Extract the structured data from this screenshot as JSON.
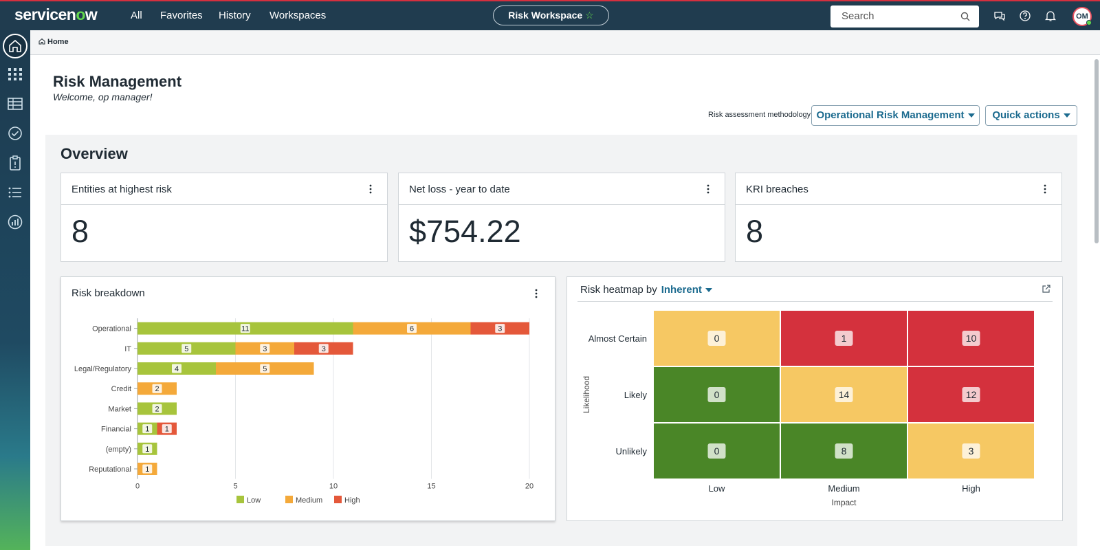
{
  "header": {
    "logo_pre": "servicen",
    "logo_o": "o",
    "logo_post": "w",
    "nav": [
      "All",
      "Favorites",
      "History",
      "Workspaces"
    ],
    "workspace": "Risk Workspace",
    "search_placeholder": "Search",
    "avatar_initials": "OM"
  },
  "breadcrumb": {
    "home": "Home"
  },
  "page": {
    "title": "Risk Management",
    "welcome": "Welcome, op manager!",
    "methodology_label": "Risk assessment methodology",
    "methodology_value": "Operational Risk Management",
    "quick_actions": "Quick actions"
  },
  "overview": {
    "title": "Overview",
    "kpis": [
      {
        "title": "Entities at highest risk",
        "value": "8"
      },
      {
        "title": "Net loss - year to date",
        "value": "$754.22"
      },
      {
        "title": "KRI breaches",
        "value": "8"
      }
    ]
  },
  "breakdown": {
    "title": "Risk breakdown"
  },
  "heatmap": {
    "title": "Risk heatmap by",
    "mode": "Inherent",
    "xlabel": "Impact",
    "ylabel": "Likelihood",
    "cols": [
      "Low",
      "Medium",
      "High"
    ],
    "rows": [
      "Almost Certain",
      "Likely",
      "Unlikely"
    ],
    "values": [
      [
        0,
        1,
        10
      ],
      [
        0,
        14,
        12
      ],
      [
        0,
        8,
        3
      ]
    ],
    "cell_colors": [
      [
        "#f6c863",
        "#d4313d",
        "#d4313d"
      ],
      [
        "#4a8627",
        "#f6c863",
        "#d4313d"
      ],
      [
        "#4a8627",
        "#4a8627",
        "#f6c863"
      ]
    ]
  },
  "chart_data": {
    "type": "bar",
    "orientation": "horizontal",
    "stacked": true,
    "title": "Risk breakdown",
    "categories": [
      "Operational",
      "IT",
      "Legal/Regulatory",
      "Credit",
      "Market",
      "Financial",
      "(empty)",
      "Reputational"
    ],
    "series": [
      {
        "name": "Low",
        "color": "#a7c43c",
        "values": [
          11,
          5,
          4,
          0,
          2,
          1,
          1,
          0
        ]
      },
      {
        "name": "Medium",
        "color": "#f4a93a",
        "values": [
          6,
          3,
          5,
          2,
          0,
          0,
          0,
          1
        ]
      },
      {
        "name": "High",
        "color": "#e4583a",
        "values": [
          3,
          3,
          0,
          0,
          0,
          1,
          0,
          0
        ]
      }
    ],
    "xlim": [
      0,
      20
    ],
    "xticks": [
      0,
      5,
      10,
      15,
      20
    ],
    "legend": "bottom",
    "grid": true
  }
}
